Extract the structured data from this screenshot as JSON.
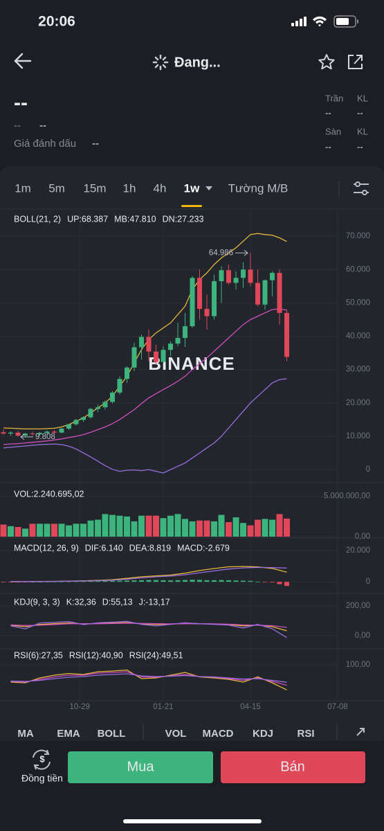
{
  "status_bar": {
    "time": "20:06"
  },
  "header": {
    "title": "Đang..."
  },
  "info": {
    "price": "--",
    "change": "--",
    "change_pct": "--",
    "mark_label": "Giá đánh dấu",
    "mark_value": "--",
    "ceiling_label": "Trần",
    "ceiling_vol_label": "KL",
    "ceiling_value": "--",
    "ceiling_vol": "--",
    "floor_label": "Sàn",
    "floor_vol_label": "KL",
    "floor_value": "--",
    "floor_vol": "--"
  },
  "tabs": {
    "intervals": [
      "1m",
      "5m",
      "15m",
      "1h",
      "4h",
      "1w"
    ],
    "selected": 5,
    "depth": "Tường M/B"
  },
  "chart_data": [
    {
      "type": "candlestick",
      "title": "BOLL(21, 2)",
      "watermark": "BINANCE",
      "high_label": "64.986",
      "low_label": "9.808",
      "up_color": "#3db37d",
      "down_color": "#e0485a",
      "open": [
        11200,
        10800,
        11100,
        10200,
        10800,
        10600,
        11000,
        11400,
        11100,
        12300,
        13600,
        14900,
        15700,
        18200,
        18700,
        20300,
        23100,
        27200,
        30600,
        36700,
        39800,
        35400,
        32300,
        35900,
        37800,
        39500,
        43000,
        57500,
        48200,
        46000,
        56500,
        59800,
        56000,
        57500,
        60000,
        56000,
        49500,
        56800,
        59000,
        47000
      ],
      "high": [
        12000,
        11500,
        11600,
        11000,
        11400,
        11300,
        11800,
        11900,
        12500,
        13800,
        15200,
        16000,
        18500,
        19500,
        20800,
        23500,
        28000,
        31000,
        38000,
        40500,
        42000,
        37500,
        37000,
        38500,
        44000,
        47000,
        58000,
        60000,
        52500,
        58500,
        61000,
        61500,
        59500,
        62200,
        64986,
        60000,
        57000,
        59500,
        60000,
        48000
      ],
      "low": [
        10500,
        10200,
        9808,
        9900,
        10300,
        10200,
        10700,
        10900,
        10900,
        11900,
        13200,
        14300,
        15300,
        17200,
        18000,
        19800,
        22500,
        26000,
        29500,
        33000,
        32500,
        31500,
        31800,
        34000,
        37000,
        36800,
        42500,
        45000,
        42000,
        45000,
        50000,
        55500,
        54000,
        54500,
        55000,
        49000,
        48000,
        52000,
        43500,
        32500
      ],
      "close": [
        10800,
        11100,
        10200,
        10800,
        10600,
        11000,
        11400,
        11100,
        12300,
        13600,
        14900,
        15700,
        18200,
        18700,
        20300,
        23100,
        27200,
        30600,
        36700,
        39800,
        35400,
        32300,
        35900,
        37800,
        39500,
        43000,
        57500,
        48200,
        46000,
        56500,
        59800,
        56000,
        57500,
        60000,
        56000,
        49500,
        56800,
        59000,
        47000,
        33800
      ],
      "series": [
        {
          "name": "UP:68.387",
          "color": "#e9b83a",
          "values": [
            12500,
            12400,
            12300,
            12200,
            12200,
            12200,
            12300,
            12400,
            12800,
            13500,
            14500,
            15500,
            17000,
            18500,
            20000,
            22000,
            25000,
            28000,
            32000,
            36000,
            39000,
            41000,
            42500,
            44000,
            46500,
            49000,
            54000,
            57000,
            59000,
            61500,
            63500,
            65000,
            66500,
            68500,
            70500,
            70800,
            70500,
            70300,
            69500,
            68387
          ]
        },
        {
          "name": "MB:47.810",
          "color": "#d24fbf",
          "values": [
            7500,
            7700,
            7800,
            8000,
            8200,
            8400,
            8600,
            8900,
            9200,
            9600,
            10000,
            10500,
            11200,
            12000,
            12800,
            13800,
            15000,
            16500,
            18000,
            19800,
            21500,
            22800,
            24000,
            25200,
            26500,
            28000,
            30000,
            31800,
            33500,
            35500,
            37500,
            39500,
            41500,
            43500,
            45000,
            46000,
            47000,
            48000,
            48200,
            47810
          ]
        },
        {
          "name": "DN:27.233",
          "color": "#9a6ee0",
          "values": [
            6500,
            6700,
            6900,
            7100,
            7300,
            7500,
            7600,
            7700,
            7500,
            7000,
            6200,
            5000,
            3800,
            2500,
            1200,
            100,
            -500,
            -200,
            -100,
            -300,
            0,
            -500,
            -1000,
            0,
            1000,
            2000,
            3500,
            5000,
            6500,
            8000,
            10000,
            12500,
            15000,
            17500,
            20000,
            22000,
            24000,
            26000,
            27000,
            27233
          ]
        }
      ],
      "ylim": [
        -3500,
        72300
      ],
      "yticks": [
        0,
        {
          "value": 10000,
          "label": "10.000"
        },
        {
          "value": 20000,
          "label": "20.000"
        },
        {
          "value": 30000,
          "label": "30.000"
        },
        {
          "value": 40000,
          "label": "40.000"
        },
        {
          "value": 50000,
          "label": "50.000"
        },
        {
          "value": 60000,
          "label": "60.000"
        },
        {
          "value": 70000,
          "label": "70.000"
        }
      ],
      "xticks": [
        {
          "value": 10.5,
          "label": "10-29"
        },
        {
          "value": 22,
          "label": "01-21"
        },
        {
          "value": 34,
          "label": "04-15"
        },
        {
          "value": 46,
          "label": "07-08"
        }
      ]
    },
    {
      "type": "bar",
      "title": "VOL:2.240.695,02",
      "values": [
        1500000,
        1300000,
        1200000,
        1000000,
        1600000,
        1600000,
        1600000,
        1600000,
        1600000,
        1400000,
        1600000,
        1600000,
        2000000,
        2100000,
        2800000,
        2700000,
        2600000,
        2500000,
        1900000,
        2600000,
        2600000,
        2600000,
        2300000,
        2600000,
        2800000,
        2200000,
        1900000,
        2000000,
        2000000,
        1900000,
        2700000,
        1800000,
        2400000,
        1700000,
        1400000,
        2100000,
        2200000,
        2100000,
        2800000,
        2240695.02
      ],
      "ylim": [
        0,
        6000000
      ],
      "yticks": [
        {
          "value": 0,
          "label": "0,00"
        },
        {
          "value": 5000000,
          "label": "5.000.000,00"
        }
      ]
    },
    {
      "type": "macd",
      "title": "MACD(12, 26, 9)",
      "series": [
        {
          "name": "DIF:6.140",
          "color": "#e9b83a",
          "values": [
            0,
            100,
            200,
            300,
            400,
            600,
            900,
            1300,
            2200,
            3200,
            3800,
            4300,
            5500,
            7200,
            8500,
            9600,
            9800,
            9500,
            8600,
            6140
          ]
        },
        {
          "name": "DEA:8.819",
          "color": "#9a6ee0",
          "values": [
            200,
            150,
            200,
            250,
            350,
            500,
            700,
            1000,
            1600,
            2500,
            3200,
            3700,
            4500,
            5800,
            7000,
            8200,
            8900,
            9200,
            9100,
            8819
          ]
        }
      ],
      "histogram": {
        "name": "MACD:-2.679",
        "values": [
          -200,
          -150,
          -100,
          -50,
          0,
          50,
          100,
          150,
          200,
          250,
          300,
          350,
          400,
          450,
          500,
          600,
          700,
          800,
          900,
          1000,
          1100,
          1100,
          1000,
          900,
          1000,
          1100,
          1300,
          1200,
          1000,
          1000,
          1100,
          1000,
          800,
          700,
          600,
          100,
          -300,
          -400,
          -1500,
          -2679
        ]
      },
      "ylim": [
        -6600,
        25800
      ],
      "yticks": [
        {
          "value": 20000,
          "label": "20.000"
        },
        0
      ]
    },
    {
      "type": "lines",
      "title": "KDJ(9, 3, 3)",
      "series": [
        {
          "name": "K:32,36",
          "color": "#e9b83a",
          "values": [
            70,
            60,
            75,
            80,
            85,
            78,
            82,
            85,
            88,
            80,
            75,
            78,
            82,
            80,
            78,
            75,
            65,
            72,
            60,
            32.36
          ]
        },
        {
          "name": "D:55,13",
          "color": "#d24fbf",
          "values": [
            72,
            68,
            70,
            75,
            80,
            80,
            80,
            82,
            84,
            82,
            80,
            79,
            80,
            80,
            79,
            77,
            72,
            70,
            67,
            55.13
          ]
        },
        {
          "name": "J:-13,17",
          "color": "#9a6ee0",
          "values": [
            66,
            45,
            85,
            90,
            95,
            74,
            86,
            91,
            96,
            76,
            65,
            76,
            86,
            80,
            76,
            71,
            51,
            76,
            46,
            -13.17
          ]
        }
      ],
      "ylim": [
        -80,
        270
      ],
      "yticks": [
        {
          "value": 200,
          "label": "200,00"
        },
        {
          "value": 0,
          "label": "0,00"
        }
      ]
    },
    {
      "type": "lines",
      "series": [
        {
          "name": "RSI(6):27,35",
          "color": "#e9b83a",
          "values": [
            50,
            48,
            62,
            70,
            75,
            72,
            80,
            82,
            85,
            60,
            62,
            70,
            78,
            65,
            62,
            58,
            50,
            65,
            48,
            27.35
          ]
        },
        {
          "name": "RSI(12):40,90",
          "color": "#d24fbf",
          "values": [
            52,
            50,
            58,
            65,
            70,
            70,
            76,
            78,
            80,
            65,
            64,
            68,
            72,
            66,
            64,
            60,
            55,
            62,
            52,
            40.9
          ]
        },
        {
          "name": "RSI(24):49,51",
          "color": "#9a6ee0",
          "values": [
            53,
            52,
            55,
            60,
            64,
            66,
            70,
            72,
            74,
            68,
            66,
            67,
            69,
            66,
            65,
            62,
            59,
            60,
            55,
            49.51
          ]
        }
      ],
      "ylim": [
        0,
        120
      ],
      "yticks": [
        {
          "value": 100,
          "label": "100,00"
        }
      ]
    }
  ],
  "indicator_tabs": [
    "MA",
    "EMA",
    "BOLL",
    "VOL",
    "MACD",
    "KDJ",
    "RSI"
  ],
  "footer": {
    "convert": "Đồng tiền",
    "buy": "Mua",
    "sell": "Bán"
  }
}
